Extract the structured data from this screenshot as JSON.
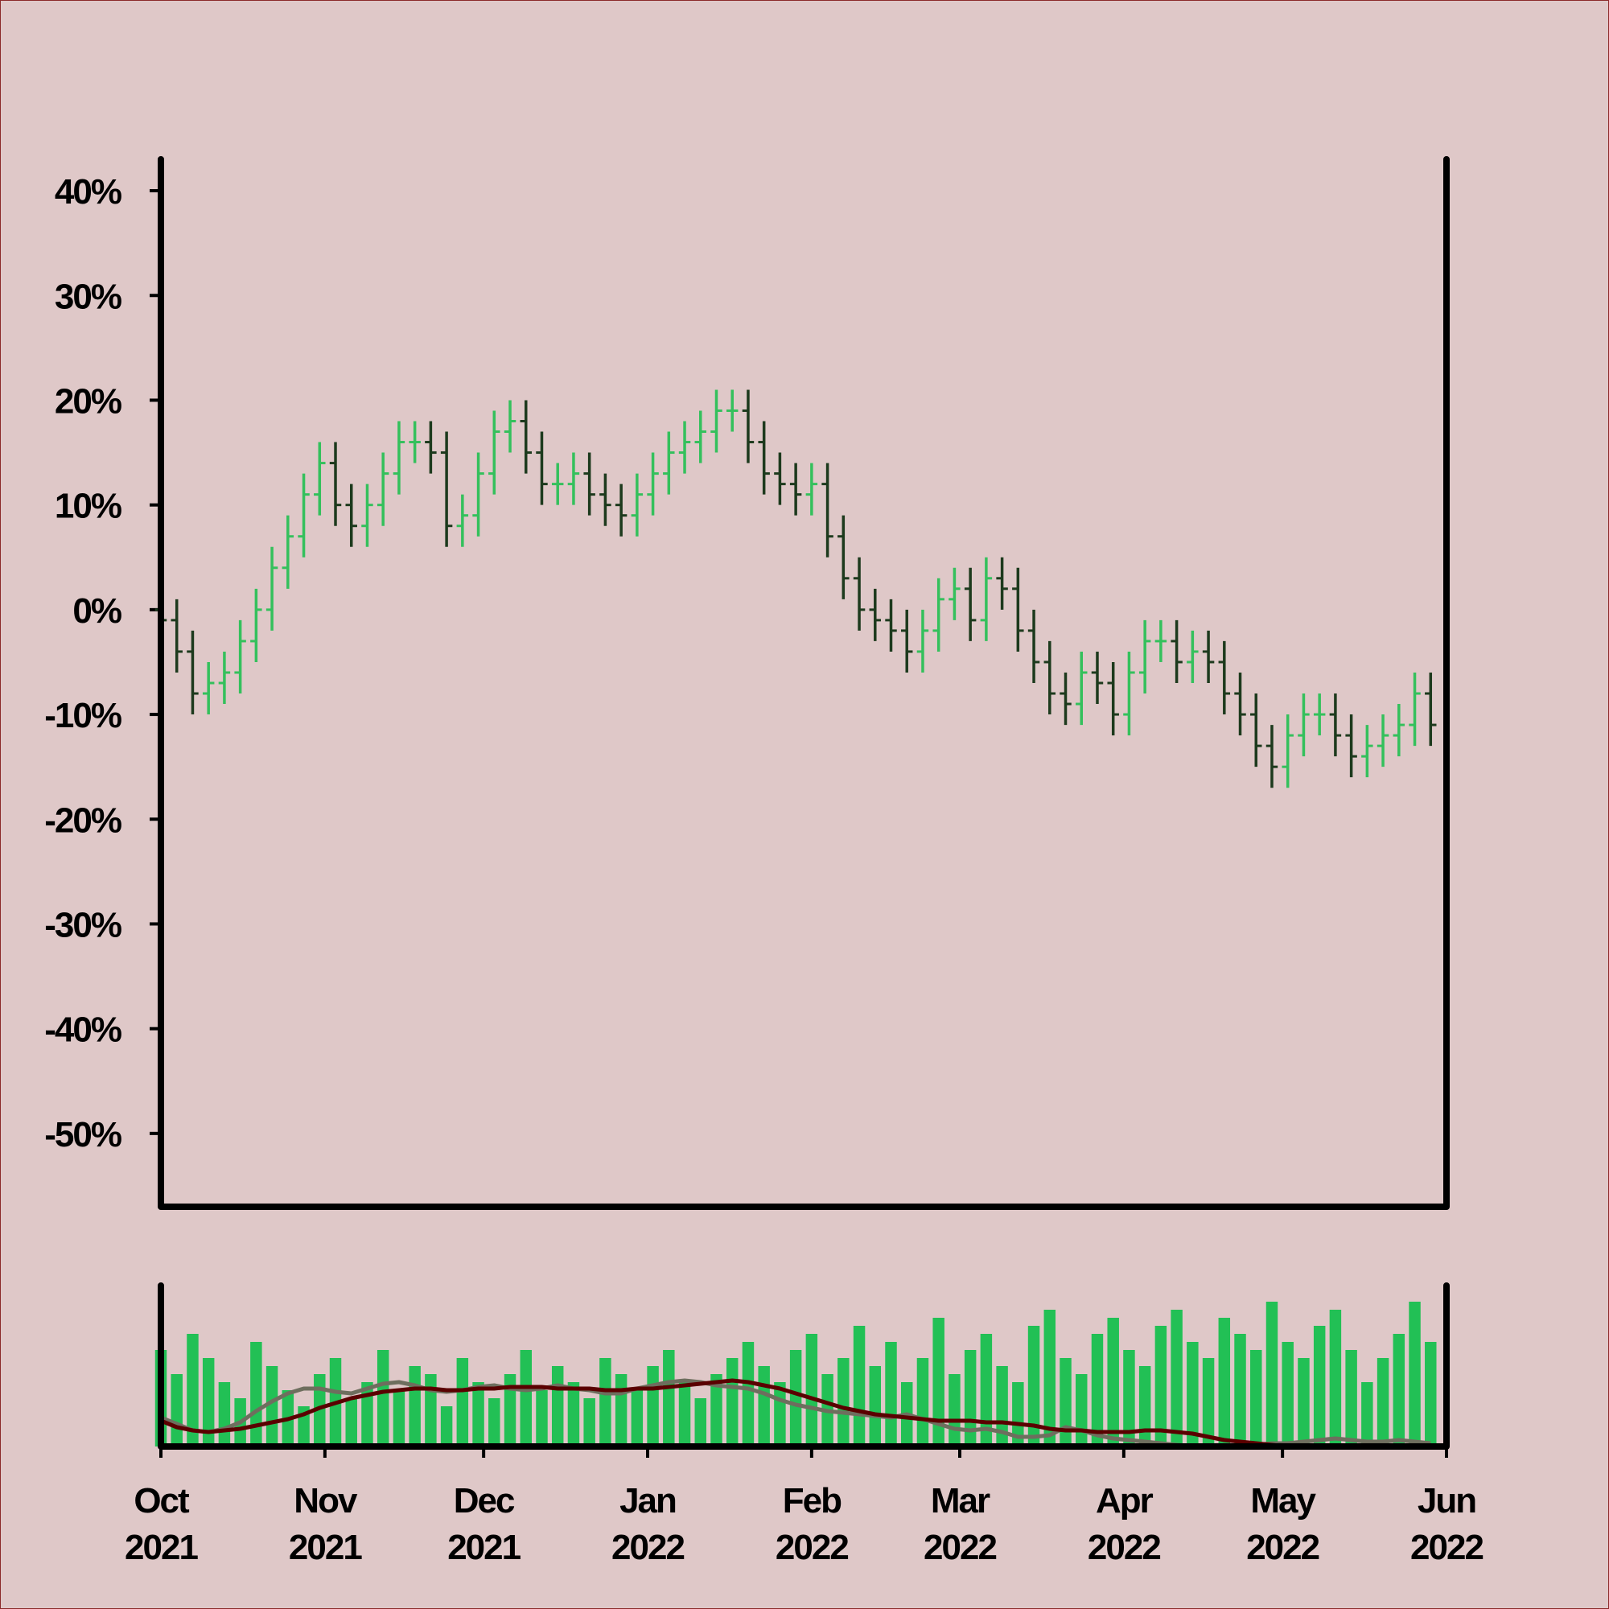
{
  "chart_data": [
    {
      "type": "ohlc",
      "x": [
        0,
        3,
        6,
        9,
        12,
        15,
        18,
        21,
        24,
        27,
        30,
        33,
        36,
        39,
        42,
        45,
        48,
        51,
        54,
        57,
        60,
        63,
        66,
        69,
        72,
        75,
        78,
        81,
        84,
        87,
        90,
        93,
        96,
        99,
        102,
        105,
        108,
        111,
        114,
        117,
        120,
        123,
        126,
        129,
        132,
        135,
        138,
        141,
        144,
        147,
        150,
        153,
        156,
        159,
        162,
        165,
        168,
        171,
        174,
        177,
        180,
        183,
        186,
        189,
        192,
        195,
        198,
        201,
        204,
        207,
        210,
        213,
        216,
        219,
        222,
        225,
        228,
        231,
        234,
        237,
        240
      ],
      "open": [
        0,
        -1,
        -4,
        -8,
        -7,
        -6,
        -3,
        0,
        4,
        7,
        11,
        14,
        10,
        8,
        10,
        13,
        16,
        16,
        15,
        8,
        9,
        13,
        17,
        18,
        15,
        12,
        12,
        13,
        11,
        10,
        9,
        11,
        13,
        15,
        16,
        17,
        19,
        19,
        16,
        13,
        12,
        11,
        12,
        7,
        3,
        0,
        -1,
        -2,
        -4,
        -2,
        1,
        2,
        -1,
        3,
        2,
        -2,
        -5,
        -8,
        -9,
        -6,
        -7,
        -10,
        -6,
        -3,
        -3,
        -5,
        -4,
        -5,
        -8,
        -10,
        -13,
        -15,
        -12,
        -10,
        -10,
        -12,
        -14,
        -13,
        -12,
        -11,
        -8
      ],
      "high": [
        2,
        1,
        -2,
        -5,
        -4,
        -1,
        2,
        6,
        9,
        13,
        16,
        16,
        12,
        12,
        15,
        18,
        18,
        18,
        17,
        11,
        15,
        19,
        20,
        20,
        17,
        14,
        15,
        15,
        13,
        12,
        13,
        15,
        17,
        18,
        19,
        21,
        21,
        21,
        18,
        15,
        14,
        14,
        14,
        9,
        5,
        2,
        1,
        0,
        0,
        3,
        4,
        4,
        5,
        5,
        4,
        0,
        -3,
        -6,
        -4,
        -4,
        -5,
        -4,
        -1,
        -1,
        -1,
        -2,
        -2,
        -3,
        -6,
        -8,
        -11,
        -10,
        -8,
        -8,
        -8,
        -10,
        -11,
        -10,
        -9,
        -6,
        -6
      ],
      "low": [
        -3,
        -6,
        -10,
        -10,
        -9,
        -8,
        -5,
        -2,
        2,
        5,
        9,
        8,
        6,
        6,
        8,
        11,
        14,
        13,
        6,
        6,
        7,
        11,
        15,
        13,
        10,
        10,
        10,
        9,
        8,
        7,
        7,
        9,
        11,
        13,
        14,
        15,
        17,
        14,
        11,
        10,
        9,
        9,
        5,
        1,
        -2,
        -3,
        -4,
        -6,
        -6,
        -4,
        -1,
        -3,
        -3,
        0,
        -4,
        -7,
        -10,
        -11,
        -11,
        -9,
        -12,
        -12,
        -8,
        -5,
        -7,
        -7,
        -7,
        -10,
        -12,
        -15,
        -17,
        -17,
        -14,
        -12,
        -14,
        -16,
        -16,
        -15,
        -14,
        -13,
        -13
      ],
      "close": [
        -1,
        -4,
        -8,
        -7,
        -6,
        -3,
        0,
        4,
        7,
        11,
        14,
        10,
        8,
        10,
        13,
        16,
        16,
        15,
        8,
        9,
        13,
        17,
        18,
        15,
        12,
        12,
        13,
        11,
        10,
        9,
        11,
        13,
        15,
        16,
        17,
        19,
        19,
        16,
        13,
        12,
        11,
        12,
        7,
        3,
        0,
        -1,
        -2,
        -4,
        -2,
        1,
        2,
        -1,
        3,
        2,
        -2,
        -5,
        -8,
        -9,
        -6,
        -7,
        -10,
        -6,
        -3,
        -3,
        -5,
        -4,
        -5,
        -8,
        -10,
        -13,
        -15,
        -12,
        -10,
        -10,
        -12,
        -14,
        -13,
        -12,
        -11,
        -8,
        -11
      ],
      "up_color": "#34c05c",
      "down_color": "#1d3a1d",
      "xlim": [
        0,
        243
      ],
      "ylim": [
        -57,
        43
      ],
      "yticks": [
        {
          "value": 40,
          "label": "40%"
        },
        {
          "value": 30,
          "label": "30%"
        },
        {
          "value": 20,
          "label": "20%"
        },
        {
          "value": 10,
          "label": "10%"
        },
        {
          "value": 0,
          "label": "0%"
        },
        {
          "value": -10,
          "label": "-10%"
        },
        {
          "value": -20,
          "label": "-20%"
        },
        {
          "value": -30,
          "label": "-30%"
        },
        {
          "value": -40,
          "label": "-40%"
        },
        {
          "value": -50,
          "label": "-50%"
        }
      ]
    },
    {
      "type": "bar",
      "x": [
        0,
        3,
        6,
        9,
        12,
        15,
        18,
        21,
        24,
        27,
        30,
        33,
        36,
        39,
        42,
        45,
        48,
        51,
        54,
        57,
        60,
        63,
        66,
        69,
        72,
        75,
        78,
        81,
        84,
        87,
        90,
        93,
        96,
        99,
        102,
        105,
        108,
        111,
        114,
        117,
        120,
        123,
        126,
        129,
        132,
        135,
        138,
        141,
        144,
        147,
        150,
        153,
        156,
        159,
        162,
        165,
        168,
        171,
        174,
        177,
        180,
        183,
        186,
        189,
        192,
        195,
        198,
        201,
        204,
        207,
        210,
        213,
        216,
        219,
        222,
        225,
        228,
        231,
        234,
        237,
        240
      ],
      "values": [
        60,
        45,
        70,
        55,
        40,
        30,
        65,
        50,
        35,
        25,
        45,
        55,
        30,
        40,
        60,
        35,
        50,
        45,
        25,
        55,
        40,
        30,
        45,
        60,
        35,
        50,
        40,
        30,
        55,
        45,
        35,
        50,
        60,
        40,
        30,
        45,
        55,
        65,
        50,
        40,
        60,
        70,
        45,
        55,
        75,
        50,
        65,
        40,
        55,
        80,
        45,
        60,
        70,
        50,
        40,
        75,
        85,
        55,
        45,
        70,
        80,
        60,
        50,
        75,
        85,
        65,
        55,
        80,
        70,
        60,
        90,
        65,
        55,
        75,
        85,
        60,
        40,
        55,
        70,
        90,
        65
      ],
      "color": "#22c055",
      "series": [
        {
          "color": "#6e6e5e",
          "values": [
            18,
            14,
            10,
            9,
            11,
            15,
            22,
            28,
            33,
            36,
            36,
            34,
            33,
            36,
            39,
            40,
            38,
            35,
            34,
            35,
            37,
            38,
            36,
            35,
            36,
            38,
            36,
            35,
            33,
            33,
            36,
            38,
            40,
            41,
            40,
            38,
            37,
            36,
            33,
            29,
            26,
            24,
            22,
            21,
            20,
            19,
            18,
            20,
            17,
            14,
            11,
            10,
            11,
            9,
            6,
            6,
            7,
            12,
            10,
            7,
            5,
            4,
            3,
            2,
            1,
            0,
            0,
            0,
            0,
            1,
            2,
            2,
            3,
            4,
            5,
            4,
            3,
            3,
            4,
            3,
            2
          ]
        },
        {
          "color": "#5a0000",
          "values": [
            16,
            12,
            10,
            9,
            10,
            11,
            13,
            15,
            17,
            20,
            24,
            27,
            30,
            32,
            34,
            35,
            36,
            36,
            35,
            35,
            36,
            36,
            37,
            37,
            37,
            36,
            36,
            36,
            35,
            35,
            36,
            36,
            37,
            38,
            39,
            40,
            41,
            40,
            38,
            36,
            33,
            30,
            27,
            24,
            22,
            20,
            19,
            18,
            17,
            16,
            16,
            16,
            15,
            15,
            14,
            13,
            11,
            10,
            10,
            9,
            9,
            9,
            10,
            10,
            9,
            8,
            6,
            4,
            3,
            2,
            1,
            0,
            0,
            0,
            0,
            0,
            0,
            0,
            0,
            0,
            0
          ]
        }
      ],
      "xlim": [
        0,
        243
      ],
      "ylim": [
        0,
        100
      ],
      "xticks": [
        {
          "value": 0,
          "label": "Oct 2021"
        },
        {
          "value": 31,
          "label": "Nov 2021"
        },
        {
          "value": 61,
          "label": "Dec 2021"
        },
        {
          "value": 92,
          "label": "Jan 2022"
        },
        {
          "value": 123,
          "label": "Feb 2022"
        },
        {
          "value": 151,
          "label": "Mar 2022"
        },
        {
          "value": 182,
          "label": "Apr 2022"
        },
        {
          "value": 212,
          "label": "May 2022"
        },
        {
          "value": 243,
          "label": "Jun 2022"
        }
      ]
    }
  ]
}
